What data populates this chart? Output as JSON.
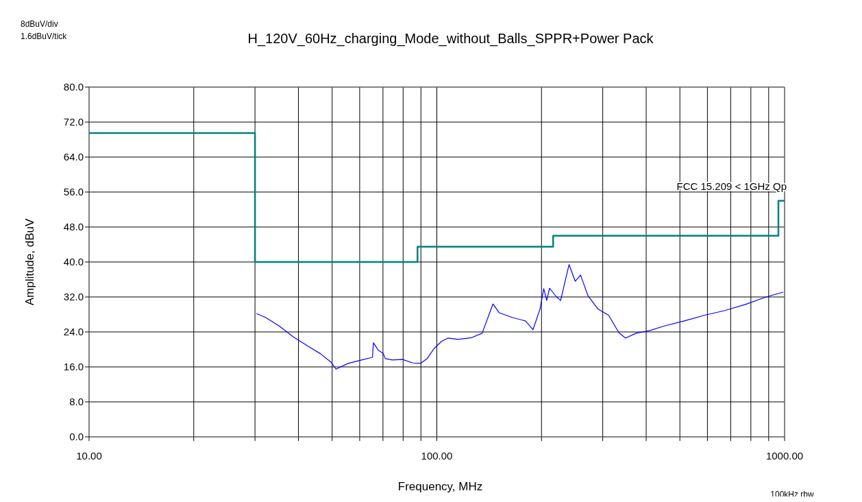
{
  "chart_data": {
    "type": "line",
    "title": "H_120V_60Hz_charging_Mode_without_Balls_SPPR+Power Pack",
    "xlabel": "Frequency, MHz",
    "ylabel": "Amplitude, dBuV",
    "annotations": [
      "8dBuV/div",
      "1.6dBuV/tick",
      "100kHz rbw"
    ],
    "log": "x",
    "grid": true,
    "xlim": [
      10,
      1000
    ],
    "xticks": [
      {
        "value": 10,
        "label": "10.00"
      },
      {
        "value": 20,
        "label": null
      },
      {
        "value": 30,
        "label": null
      },
      {
        "value": 40,
        "label": null
      },
      {
        "value": 50,
        "label": null
      },
      {
        "value": 60,
        "label": null
      },
      {
        "value": 70,
        "label": null
      },
      {
        "value": 80,
        "label": null
      },
      {
        "value": 90,
        "label": null
      },
      {
        "value": 100,
        "label": "100.00"
      },
      {
        "value": 200,
        "label": null
      },
      {
        "value": 300,
        "label": null
      },
      {
        "value": 400,
        "label": null
      },
      {
        "value": 500,
        "label": null
      },
      {
        "value": 600,
        "label": null
      },
      {
        "value": 700,
        "label": null
      },
      {
        "value": 800,
        "label": null
      },
      {
        "value": 900,
        "label": null
      },
      {
        "value": 1000,
        "label": "1000.00"
      }
    ],
    "ylim": [
      0,
      80
    ],
    "yticks": [
      {
        "value": 0,
        "label": "0.0"
      },
      {
        "value": 8,
        "label": "8.0"
      },
      {
        "value": 16,
        "label": "16.0"
      },
      {
        "value": 24,
        "label": "24.0"
      },
      {
        "value": 32,
        "label": "32.0"
      },
      {
        "value": 40,
        "label": "40.0"
      },
      {
        "value": 48,
        "label": "48.0"
      },
      {
        "value": 56,
        "label": "56.0"
      },
      {
        "value": 64,
        "label": "64.0"
      },
      {
        "value": 72,
        "label": "72.0"
      },
      {
        "value": 80,
        "label": "80.0"
      }
    ],
    "series": [
      {
        "type": "step",
        "name": "FCC 15.209 < 1GHz Qp",
        "color": "#008080",
        "x": [
          10,
          30,
          88,
          216,
          960,
          1000
        ],
        "values": [
          69.5,
          40,
          43.5,
          46,
          54,
          54
        ]
      },
      {
        "color": "#0000ff",
        "x": [
          30.3,
          32.2,
          35.3,
          38.6,
          42.3,
          46.3,
          49.6,
          51.3,
          55.6,
          60.8,
          65.3,
          65.7,
          67.9,
          70.1,
          71.1,
          74.4,
          79.7,
          85.4,
          89.6,
          93.8,
          98.2,
          103,
          107.6,
          115,
          126,
          135,
          145,
          151,
          165,
          180,
          189,
          198,
          203,
          207,
          211,
          221,
          227,
          232,
          240,
          250,
          259,
          272,
          291,
          312,
          334,
          349,
          374,
          409,
          448,
          513,
          588,
          674,
          772,
          885,
          991
        ],
        "values": [
          28.2,
          27.3,
          25.3,
          22.9,
          20.9,
          19.0,
          17.1,
          15.5,
          16.8,
          17.6,
          18.2,
          21.5,
          19.8,
          19.1,
          17.9,
          17.6,
          17.7,
          16.9,
          16.8,
          17.9,
          20.2,
          21.8,
          22.6,
          22.3,
          22.7,
          23.7,
          30.4,
          28.4,
          27.3,
          26.5,
          24.5,
          29.2,
          33.9,
          31.2,
          34.0,
          32.0,
          31.2,
          34.4,
          39.4,
          35.6,
          37.0,
          32.3,
          29.2,
          27.8,
          23.8,
          22.6,
          23.7,
          24.3,
          25.3,
          26.5,
          27.8,
          28.9,
          30.3,
          32.0,
          33.1
        ]
      }
    ]
  }
}
